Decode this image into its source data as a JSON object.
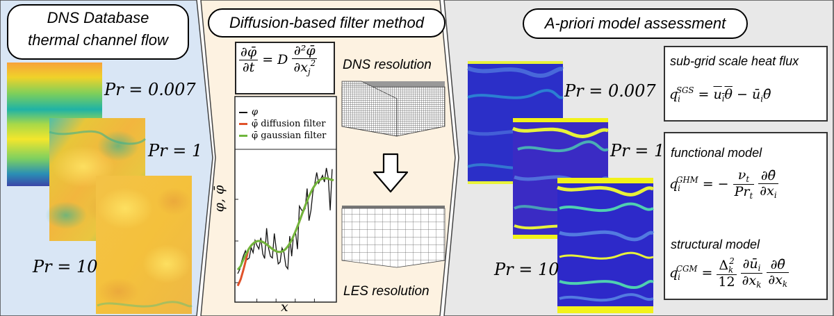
{
  "colors": {
    "panel_left_bg": "#d9e6f5",
    "panel_mid_bg": "#fdf2e1",
    "panel_right_bg": "#e8e8e8",
    "panel_border": "#444444",
    "series_phi": "#111111",
    "series_diffusion": "#e0522a",
    "series_gaussian": "#6fb63c"
  },
  "left": {
    "title_line1": "DNS Database",
    "title_line2": "thermal channel flow",
    "pr_labels": [
      "Pr = 0.007",
      "Pr = 1",
      "Pr = 10"
    ]
  },
  "middle": {
    "title": "Diffusion-based filter method",
    "equation": {
      "lhs_num": "∂φ̄",
      "lhs_den": "∂t",
      "equals": "= D",
      "rhs_num": "∂²φ̄",
      "rhs_den": "∂x",
      "rhs_den_sub": "j",
      "rhs_den_sup": "2"
    },
    "dns_label": "DNS resolution",
    "les_label": "LES resolution",
    "plot": {
      "legend": [
        "φ",
        "φ̄ diffusion filter",
        "φ̄ gaussian filter"
      ],
      "ylabel": "φ, φ̄",
      "xlabel": "x"
    }
  },
  "right": {
    "title": "A-priori model assessment",
    "pr_labels": [
      "Pr = 0.007",
      "Pr = 1",
      "Pr = 10"
    ],
    "sgs_box": {
      "title": "sub-grid scale heat flux",
      "q": "q",
      "sub": "i",
      "sup": "SGS",
      "rhs_a": "u",
      "rhs_a_sub": "i",
      "rhs_b": "θ",
      "minus": "−",
      "rhs_c": "ū",
      "rhs_c_sub": "i",
      "rhs_d": "θ̄"
    },
    "models_box": {
      "functional_title": "functional model",
      "ghm_q": "q",
      "ghm_sub": "i",
      "ghm_sup": "GHM",
      "ghm_eq": "= −",
      "ghm_num1": "ν",
      "ghm_num1_sub": "t",
      "ghm_den1": "Pr",
      "ghm_den1_sub": "t",
      "ghm_num2": "∂θ̄",
      "ghm_den2": "∂x",
      "ghm_den2_sub": "i",
      "structural_title": "structural model",
      "cgm_q": "q",
      "cgm_sub": "i",
      "cgm_sup": "CGM",
      "cgm_eq": "=",
      "cgm_num1": "Δ",
      "cgm_num1_sub": "k",
      "cgm_num1_sup": "2",
      "cgm_den1": "12",
      "cgm_num2": "∂ū",
      "cgm_num2_sub": "i",
      "cgm_den2": "∂x",
      "cgm_den2_sub": "k",
      "cgm_num3": "∂θ̄",
      "cgm_den3": "∂x",
      "cgm_den3_sub": "k"
    }
  }
}
